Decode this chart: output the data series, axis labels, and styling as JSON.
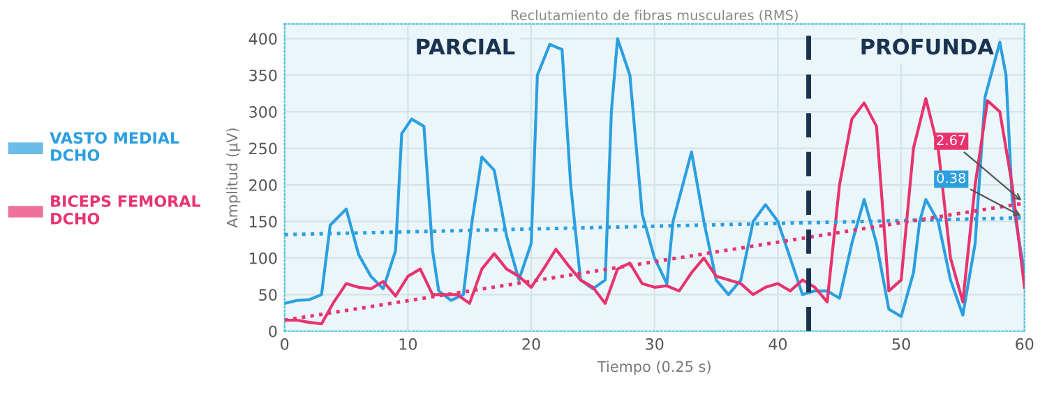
{
  "chart_data": {
    "type": "line",
    "title": "Reclutamiento de fibras musculares (RMS)",
    "xlabel": "Tiempo (0.25 s)",
    "ylabel": "Amplitud (μV)",
    "xlim": [
      0,
      60
    ],
    "xticks": [
      0,
      10,
      20,
      30,
      40,
      50,
      60
    ],
    "ylim": [
      0,
      420
    ],
    "yticks": [
      0,
      50,
      100,
      150,
      200,
      250,
      300,
      350,
      400
    ],
    "grid": true,
    "legend": "left",
    "marker": "none",
    "series": [
      {
        "name": "VASTO MEDIAL\nDCHO",
        "color": "#2b9fe0",
        "line_style": "solid",
        "x": [
          0,
          1,
          2,
          3,
          3.7,
          5,
          6,
          7,
          8,
          9,
          9.5,
          10.3,
          11.3,
          12,
          12.5,
          13.5,
          14.5,
          15.2,
          16,
          17,
          18,
          19,
          20,
          20.5,
          21.5,
          22.5,
          23.2,
          24,
          25,
          26,
          26.5,
          27,
          28,
          29,
          30,
          31,
          31.5,
          33,
          34,
          35,
          36,
          37,
          38,
          39,
          40,
          41,
          42,
          43,
          44,
          45,
          46,
          47,
          48,
          49,
          50,
          51,
          51.5,
          52,
          53,
          54,
          55,
          56,
          56.8,
          58,
          58.5,
          59,
          60
        ],
        "values": [
          38,
          42,
          43,
          50,
          145,
          167,
          105,
          75,
          58,
          110,
          270,
          290,
          280,
          110,
          55,
          42,
          50,
          150,
          238,
          220,
          130,
          70,
          120,
          350,
          392,
          385,
          200,
          70,
          58,
          70,
          300,
          400,
          350,
          160,
          100,
          65,
          150,
          245,
          150,
          70,
          50,
          70,
          150,
          173,
          150,
          100,
          50,
          55,
          55,
          45,
          120,
          180,
          120,
          30,
          20,
          80,
          150,
          180,
          150,
          70,
          22,
          120,
          320,
          395,
          350,
          180,
          80
        ]
      },
      {
        "name": "BICEPS FEMORAL\nDCHO",
        "color": "#e8336f",
        "line_style": "solid",
        "x": [
          0,
          1,
          2,
          3,
          4,
          5,
          6,
          7,
          8,
          9,
          10,
          11,
          12,
          13,
          14,
          15,
          16,
          17,
          18,
          19,
          20,
          21,
          22,
          23,
          24,
          25,
          26,
          27,
          28,
          29,
          30,
          31,
          32,
          33,
          34,
          35,
          36,
          37,
          38,
          39,
          40,
          41,
          42,
          43,
          44,
          45,
          46,
          47,
          48,
          49,
          50,
          51,
          52,
          53,
          54,
          55,
          56,
          57,
          58,
          59,
          60
        ],
        "values": [
          15,
          15,
          12,
          10,
          40,
          65,
          60,
          58,
          68,
          48,
          75,
          85,
          50,
          50,
          50,
          38,
          85,
          106,
          85,
          75,
          60,
          85,
          112,
          90,
          70,
          60,
          38,
          85,
          93,
          65,
          60,
          62,
          55,
          80,
          100,
          75,
          70,
          65,
          50,
          60,
          65,
          55,
          70,
          60,
          40,
          200,
          290,
          312,
          280,
          55,
          70,
          250,
          318,
          250,
          100,
          40,
          200,
          315,
          300,
          200,
          60
        ]
      },
      {
        "color": "#2b9fe0",
        "line_style": "dotted",
        "x": [
          0,
          60
        ],
        "values": [
          132,
          155
        ]
      },
      {
        "color": "#e8336f",
        "line_style": "dotted",
        "x": [
          0,
          60
        ],
        "values": [
          15,
          175
        ]
      }
    ],
    "ref_lines": [
      {
        "axis": "x",
        "value": 42.5,
        "color": "#1a3350",
        "line_style": "dashed"
      }
    ],
    "annotations": [
      "PARCIAL",
      "PROFUNDA",
      {
        "text": "2.67",
        "x": 60,
        "y": 175
      },
      {
        "text": "0.38",
        "x": 60,
        "y": 155
      }
    ]
  }
}
